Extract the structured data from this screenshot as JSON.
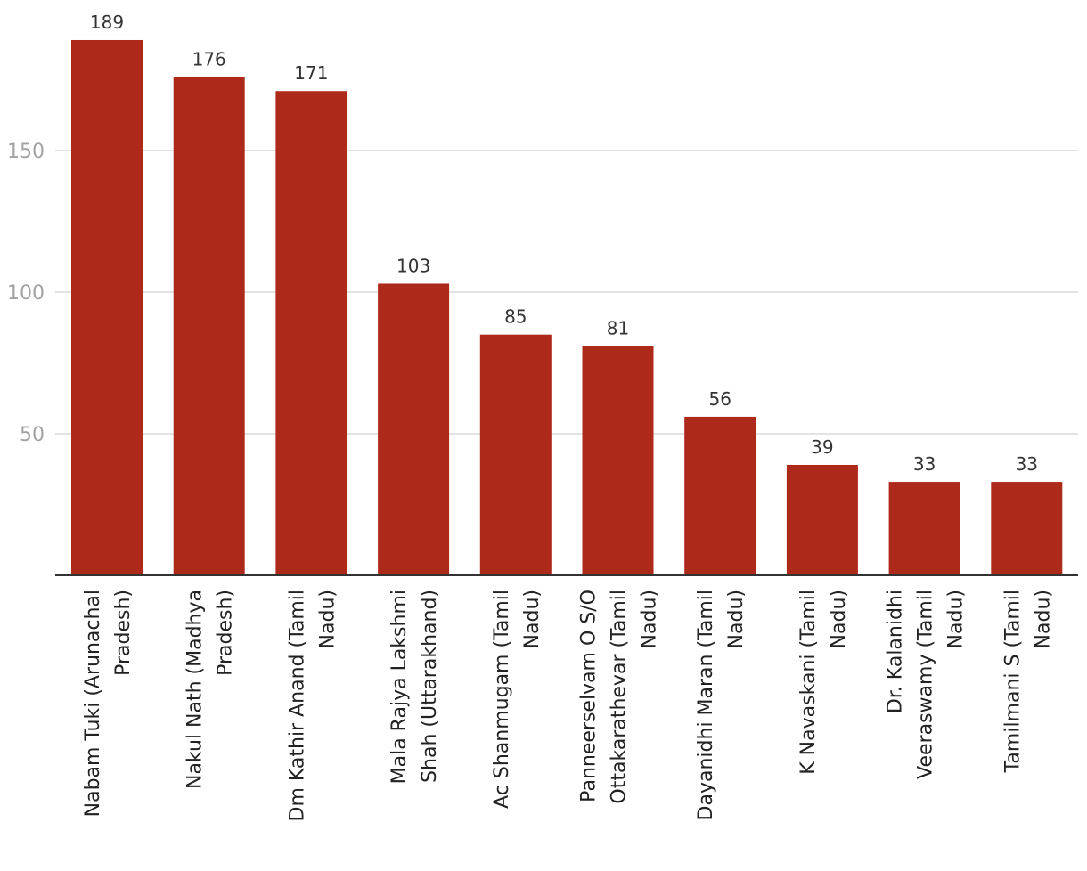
{
  "chart_data": {
    "type": "bar",
    "title": "",
    "xlabel": "",
    "ylabel": "",
    "ylim": [
      0,
      200
    ],
    "yticks": [
      50,
      100,
      150
    ],
    "grid": true,
    "bar_color": "#ad2a1a",
    "categories": [
      [
        "Nabam Tuki (Arunachal",
        "Pradesh)"
      ],
      [
        "Nakul Nath (Madhya",
        "Pradesh)"
      ],
      [
        "Dm Kathir Anand (Tamil",
        "Nadu)"
      ],
      [
        "Mala Rajya Lakshmi",
        "Shah (Uttarakhand)"
      ],
      [
        "Ac Shanmugam (Tamil",
        "Nadu)"
      ],
      [
        "Panneerselvam O S/O",
        "Ottakarathevar (Tamil",
        "Nadu)"
      ],
      [
        "Dayanidhi Maran (Tamil",
        "Nadu)"
      ],
      [
        "K Navaskani (Tamil",
        "Nadu)"
      ],
      [
        "Dr. Kalanidhi",
        "Veeraswamy (Tamil",
        "Nadu)"
      ],
      [
        "Tamilmani S (Tamil",
        "Nadu)"
      ]
    ],
    "values": [
      189,
      176,
      171,
      103,
      85,
      81,
      56,
      39,
      33,
      33
    ]
  }
}
